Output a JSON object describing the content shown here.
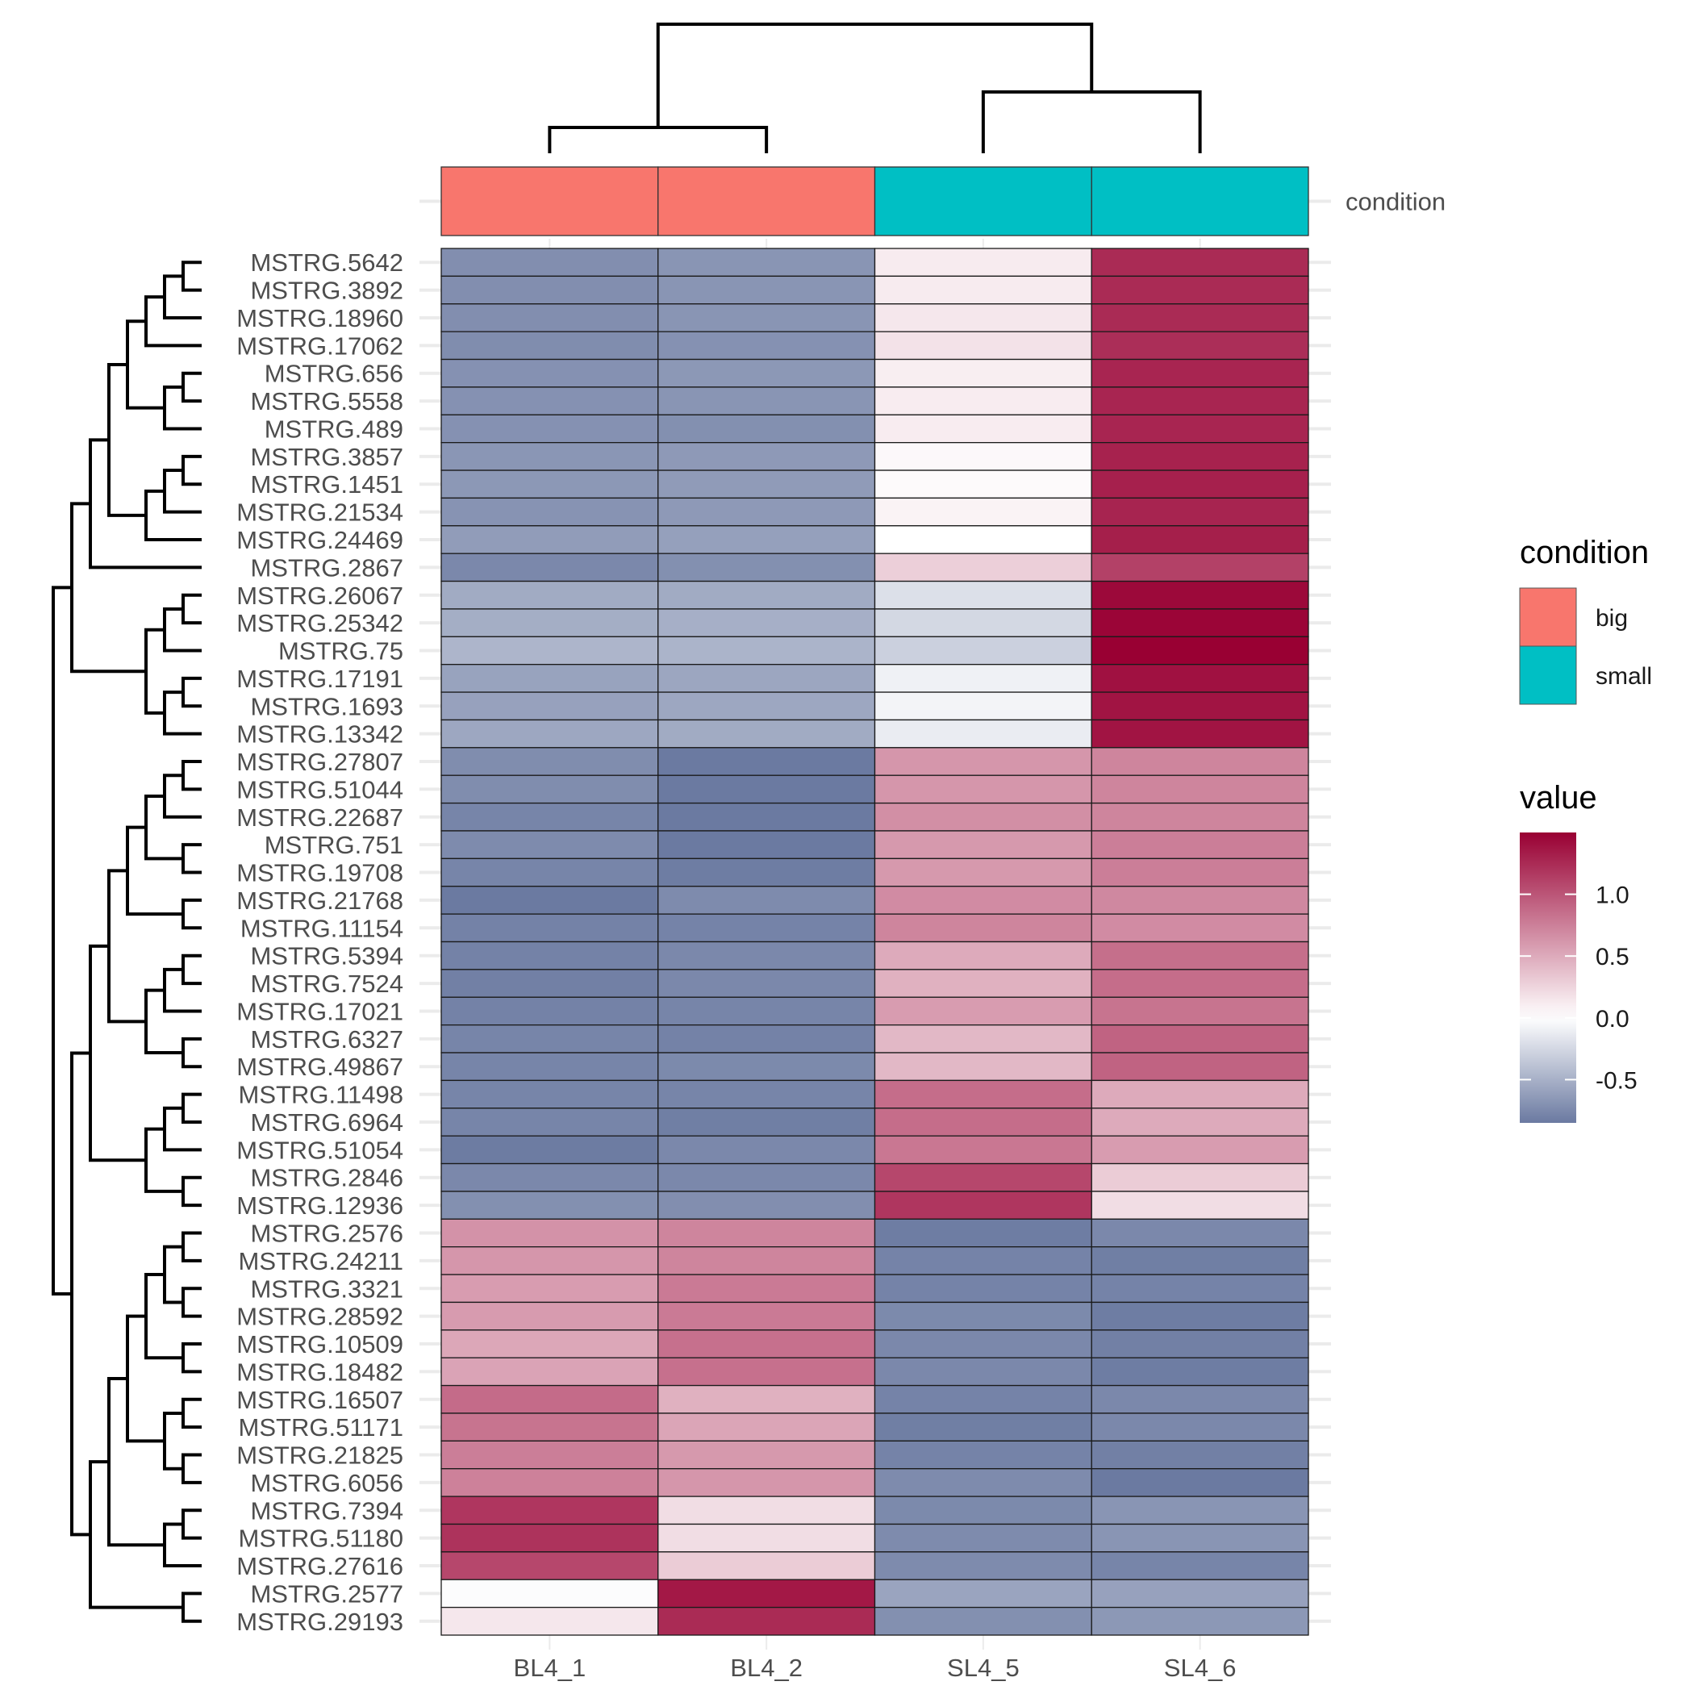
{
  "chart_data": {
    "type": "heatmap",
    "title": "",
    "xlabel": "",
    "ylabel": "",
    "columns": [
      "BL4_1",
      "BL4_2",
      "SL4_5",
      "SL4_6"
    ],
    "column_annotation": {
      "name": "condition",
      "values": [
        "big",
        "big",
        "small",
        "small"
      ],
      "legend_title": "condition",
      "levels": [
        {
          "label": "big",
          "color": "#F8766D"
        },
        {
          "label": "small",
          "color": "#00BFC4"
        }
      ]
    },
    "color_scale": {
      "legend_title": "value",
      "low_color": "#6B7AA1",
      "mid_color": "#FFFFFF",
      "high_color": "#990033",
      "range": [
        -0.85,
        1.5
      ],
      "ticks": [
        1.0,
        0.5,
        0.0,
        -0.5
      ],
      "tick_labels": [
        "1.0",
        "0.5",
        "0.0",
        "-0.5"
      ]
    },
    "rows": [
      {
        "gene": "MSTRG.5642",
        "values": [
          -0.72,
          -0.68,
          0.12,
          1.25
        ]
      },
      {
        "gene": "MSTRG.3892",
        "values": [
          -0.72,
          -0.68,
          0.12,
          1.25
        ]
      },
      {
        "gene": "MSTRG.18960",
        "values": [
          -0.72,
          -0.68,
          0.14,
          1.25
        ]
      },
      {
        "gene": "MSTRG.17062",
        "values": [
          -0.73,
          -0.7,
          0.17,
          1.23
        ]
      },
      {
        "gene": "MSTRG.656",
        "values": [
          -0.7,
          -0.66,
          0.1,
          1.28
        ]
      },
      {
        "gene": "MSTRG.5558",
        "values": [
          -0.7,
          -0.68,
          0.11,
          1.28
        ]
      },
      {
        "gene": "MSTRG.489",
        "values": [
          -0.7,
          -0.71,
          0.11,
          1.28
        ]
      },
      {
        "gene": "MSTRG.3857",
        "values": [
          -0.67,
          -0.65,
          0.04,
          1.3
        ]
      },
      {
        "gene": "MSTRG.1451",
        "values": [
          -0.66,
          -0.64,
          0.03,
          1.31
        ]
      },
      {
        "gene": "MSTRG.21534",
        "values": [
          -0.69,
          -0.65,
          0.07,
          1.29
        ]
      },
      {
        "gene": "MSTRG.24469",
        "values": [
          -0.63,
          -0.61,
          0.0,
          1.32
        ]
      },
      {
        "gene": "MSTRG.2867",
        "values": [
          -0.76,
          -0.71,
          0.28,
          1.12
        ]
      },
      {
        "gene": "MSTRG.26067",
        "values": [
          -0.54,
          -0.54,
          -0.2,
          1.45
        ]
      },
      {
        "gene": "MSTRG.25342",
        "values": [
          -0.52,
          -0.51,
          -0.25,
          1.47
        ]
      },
      {
        "gene": "MSTRG.75",
        "values": [
          -0.47,
          -0.48,
          -0.3,
          1.5
        ]
      },
      {
        "gene": "MSTRG.17191",
        "values": [
          -0.59,
          -0.57,
          -0.09,
          1.4
        ]
      },
      {
        "gene": "MSTRG.1693",
        "values": [
          -0.6,
          -0.56,
          -0.07,
          1.38
        ]
      },
      {
        "gene": "MSTRG.13342",
        "values": [
          -0.56,
          -0.54,
          -0.12,
          1.38
        ]
      },
      {
        "gene": "MSTRG.27807",
        "values": [
          -0.73,
          -0.85,
          0.62,
          0.72
        ]
      },
      {
        "gene": "MSTRG.51044",
        "values": [
          -0.73,
          -0.85,
          0.62,
          0.72
        ]
      },
      {
        "gene": "MSTRG.22687",
        "values": [
          -0.78,
          -0.85,
          0.66,
          0.72
        ]
      },
      {
        "gene": "MSTRG.751",
        "values": [
          -0.74,
          -0.86,
          0.6,
          0.76
        ]
      },
      {
        "gene": "MSTRG.19708",
        "values": [
          -0.78,
          -0.83,
          0.6,
          0.76
        ]
      },
      {
        "gene": "MSTRG.21768",
        "values": [
          -0.88,
          -0.74,
          0.68,
          0.7
        ]
      },
      {
        "gene": "MSTRG.11154",
        "values": [
          -0.8,
          -0.79,
          0.72,
          0.68
        ]
      },
      {
        "gene": "MSTRG.5394",
        "values": [
          -0.8,
          -0.76,
          0.5,
          0.85
        ]
      },
      {
        "gene": "MSTRG.7524",
        "values": [
          -0.81,
          -0.76,
          0.46,
          0.86
        ]
      },
      {
        "gene": "MSTRG.17021",
        "values": [
          -0.8,
          -0.78,
          0.58,
          0.82
        ]
      },
      {
        "gene": "MSTRG.6327",
        "values": [
          -0.78,
          -0.8,
          0.42,
          0.92
        ]
      },
      {
        "gene": "MSTRG.49867",
        "values": [
          -0.78,
          -0.75,
          0.42,
          0.92
        ]
      },
      {
        "gene": "MSTRG.11498",
        "values": [
          -0.78,
          -0.78,
          0.86,
          0.5
        ]
      },
      {
        "gene": "MSTRG.6964",
        "values": [
          -0.78,
          -0.82,
          0.86,
          0.5
        ]
      },
      {
        "gene": "MSTRG.51054",
        "values": [
          -0.84,
          -0.76,
          0.8,
          0.58
        ]
      },
      {
        "gene": "MSTRG.2846",
        "values": [
          -0.76,
          -0.76,
          1.08,
          0.3
        ]
      },
      {
        "gene": "MSTRG.12936",
        "values": [
          -0.71,
          -0.72,
          1.18,
          0.2
        ]
      },
      {
        "gene": "MSTRG.2576",
        "values": [
          0.64,
          0.72,
          -0.83,
          -0.76
        ]
      },
      {
        "gene": "MSTRG.24211",
        "values": [
          0.62,
          0.72,
          -0.79,
          -0.82
        ]
      },
      {
        "gene": "MSTRG.3321",
        "values": [
          0.58,
          0.78,
          -0.79,
          -0.79
        ]
      },
      {
        "gene": "MSTRG.28592",
        "values": [
          0.59,
          0.78,
          -0.75,
          -0.83
        ]
      },
      {
        "gene": "MSTRG.10509",
        "values": [
          0.52,
          0.84,
          -0.76,
          -0.81
        ]
      },
      {
        "gene": "MSTRG.18482",
        "values": [
          0.54,
          0.84,
          -0.76,
          -0.83
        ]
      },
      {
        "gene": "MSTRG.16507",
        "values": [
          0.87,
          0.46,
          -0.79,
          -0.76
        ]
      },
      {
        "gene": "MSTRG.51171",
        "values": [
          0.82,
          0.53,
          -0.82,
          -0.76
        ]
      },
      {
        "gene": "MSTRG.21825",
        "values": [
          0.76,
          0.6,
          -0.79,
          -0.81
        ]
      },
      {
        "gene": "MSTRG.6056",
        "values": [
          0.74,
          0.62,
          -0.74,
          -0.88
        ]
      },
      {
        "gene": "MSTRG.7394",
        "values": [
          1.18,
          0.2,
          -0.75,
          -0.68
        ]
      },
      {
        "gene": "MSTRG.51180",
        "values": [
          1.2,
          0.2,
          -0.74,
          -0.68
        ]
      },
      {
        "gene": "MSTRG.27616",
        "values": [
          1.08,
          0.3,
          -0.74,
          -0.78
        ]
      },
      {
        "gene": "MSTRG.2577",
        "values": [
          -0.02,
          1.36,
          -0.58,
          -0.6
        ]
      },
      {
        "gene": "MSTRG.29193",
        "values": [
          0.14,
          1.25,
          -0.71,
          -0.66
        ]
      }
    ],
    "row_dendrogram": [
      [
        [
          [
            [
              [
                [
                  [
                    0,
                    1
                  ],
                  2
                ],
                3
              ],
              [
                [
                  4,
                  5
                ],
                6
              ]
            ],
            [
              [
                [
                  7,
                  8
                ],
                9
              ],
              10
            ]
          ],
          11
        ],
        [
          [
            [
              12,
              13
            ],
            14
          ],
          [
            [
              15,
              16
            ],
            17
          ]
        ]
      ],
      [
        [
          [
            [
              [
                [
                  [
                    18,
                    19
                  ],
                  20
                ],
                [
                  21,
                  22
                ]
              ],
              [
                23,
                24
              ]
            ],
            [
              [
                [
                  25,
                  26
                ],
                27
              ],
              [
                28,
                29
              ]
            ]
          ],
          [
            [
              [
                30,
                31
              ],
              32
            ],
            [
              33,
              34
            ]
          ]
        ],
        [
          [
            [
              [
                [
                  [
                    35,
                    36
                  ],
                  [
                    37,
                    38
                  ]
                ],
                [
                  39,
                  40
                ]
              ],
              [
                [
                  41,
                  42
                ],
                [
                  43,
                  44
                ]
              ]
            ],
            [
              [
                45,
                46
              ],
              47
            ]
          ],
          [
            48,
            49
          ]
        ]
      ]
    ],
    "column_dendrogram": [
      [
        0,
        1
      ],
      [
        2,
        3
      ]
    ]
  }
}
